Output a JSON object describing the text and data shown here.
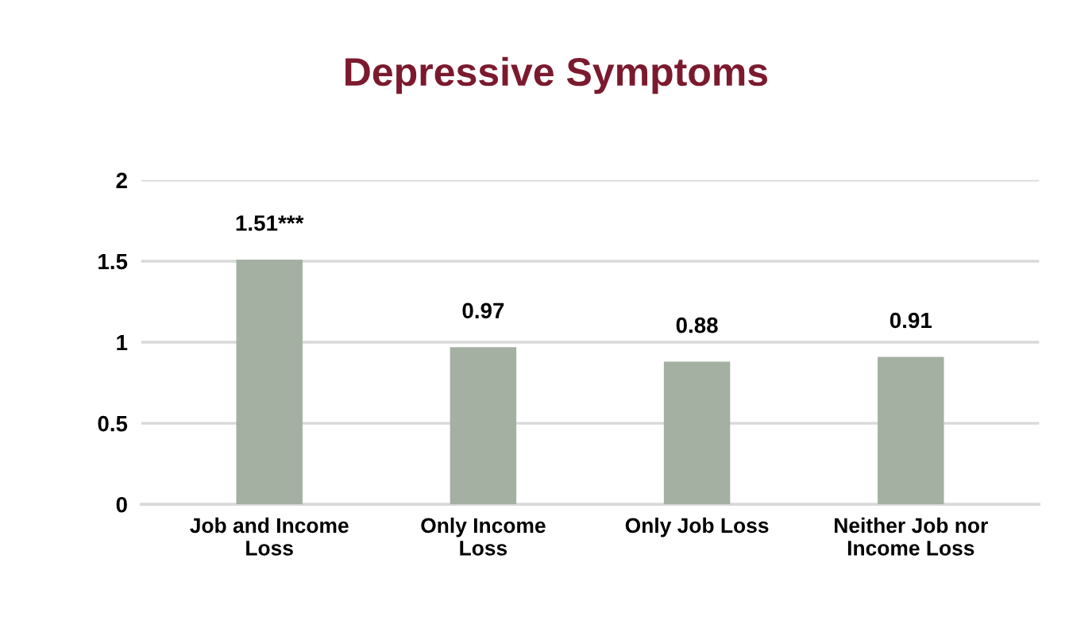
{
  "chart_data": {
    "type": "bar",
    "title": "Depressive Symptoms",
    "categories": [
      "Job and Income\nLoss",
      "Only Income\nLoss",
      "Only Job Loss",
      "Neither Job nor\nIncome Loss"
    ],
    "values": [
      1.51,
      0.97,
      0.88,
      0.91
    ],
    "value_labels": [
      "1.51***",
      "0.97",
      "0.88",
      "0.91"
    ],
    "color": "#a3b0a2",
    "ylim": [
      0,
      2
    ],
    "yticks": [
      0,
      0.5,
      1,
      1.5,
      2
    ],
    "grid": "y",
    "legend": false
  }
}
